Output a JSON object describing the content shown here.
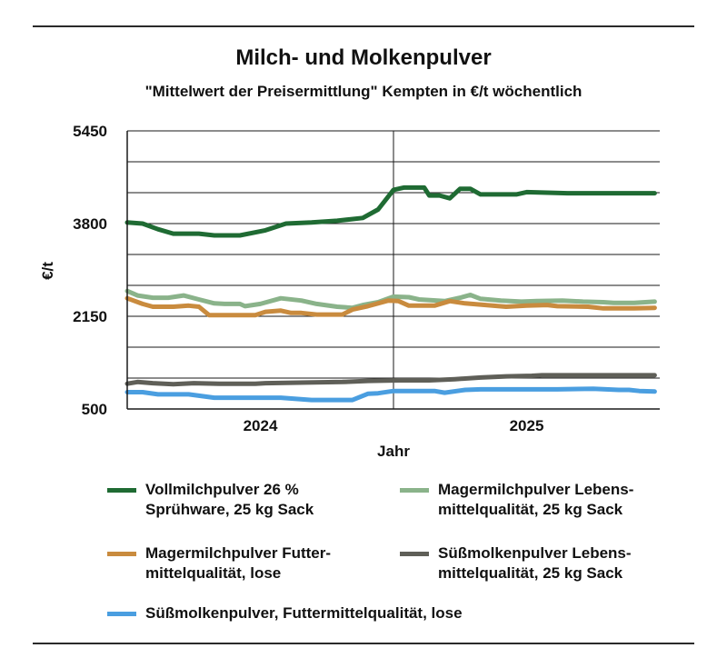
{
  "title": "Milch- und Molkenpulver",
  "subtitle": "\"Mittelwert der Preisermittlung\" Kempten in €/t wöchentlich",
  "chart_data": {
    "type": "line",
    "xlabel": "Jahr",
    "ylabel": "€/t",
    "x_ticks": [
      "2024",
      "2025"
    ],
    "xlim": [
      0,
      104
    ],
    "ylim": [
      500,
      5450
    ],
    "y_ticks": [
      500,
      2150,
      3800,
      5450
    ],
    "grid": true,
    "legend_position": "bottom",
    "series": [
      {
        "name": "Vollmilchpulver 26 %\nSprühware, 25 kg Sack",
        "color": "#1f6b33",
        "points": [
          [
            0,
            3820
          ],
          [
            3,
            3800
          ],
          [
            6,
            3700
          ],
          [
            9,
            3620
          ],
          [
            14,
            3620
          ],
          [
            17,
            3590
          ],
          [
            22,
            3590
          ],
          [
            27,
            3680
          ],
          [
            31,
            3800
          ],
          [
            36,
            3820
          ],
          [
            41,
            3850
          ],
          [
            46,
            3900
          ],
          [
            49,
            4050
          ],
          [
            52,
            4400
          ],
          [
            54,
            4440
          ],
          [
            58,
            4440
          ],
          [
            59,
            4300
          ],
          [
            61,
            4300
          ],
          [
            63,
            4250
          ],
          [
            65,
            4420
          ],
          [
            67,
            4420
          ],
          [
            69,
            4320
          ],
          [
            76,
            4320
          ],
          [
            78,
            4360
          ],
          [
            86,
            4340
          ],
          [
            94,
            4340
          ],
          [
            103,
            4340
          ]
        ]
      },
      {
        "name": "Magermilchpulver Lebens-\nmittelqualität, 25 kg Sack",
        "color": "#8ab38a",
        "points": [
          [
            0,
            2600
          ],
          [
            2,
            2520
          ],
          [
            5,
            2480
          ],
          [
            8,
            2480
          ],
          [
            11,
            2520
          ],
          [
            14,
            2450
          ],
          [
            17,
            2380
          ],
          [
            19,
            2370
          ],
          [
            22,
            2370
          ],
          [
            23,
            2330
          ],
          [
            26,
            2370
          ],
          [
            30,
            2470
          ],
          [
            34,
            2430
          ],
          [
            37,
            2370
          ],
          [
            41,
            2320
          ],
          [
            44,
            2300
          ],
          [
            46,
            2350
          ],
          [
            49,
            2400
          ],
          [
            52,
            2500
          ],
          [
            55,
            2490
          ],
          [
            57,
            2450
          ],
          [
            62,
            2420
          ],
          [
            65,
            2480
          ],
          [
            67,
            2530
          ],
          [
            69,
            2460
          ],
          [
            73,
            2430
          ],
          [
            77,
            2410
          ],
          [
            80,
            2420
          ],
          [
            85,
            2430
          ],
          [
            89,
            2410
          ],
          [
            93,
            2400
          ],
          [
            95,
            2390
          ],
          [
            99,
            2390
          ],
          [
            103,
            2410
          ]
        ]
      },
      {
        "name": "Magermilchpulver Futter-\nmittelqualität, lose",
        "color": "#c98b3e",
        "points": [
          [
            0,
            2470
          ],
          [
            3,
            2370
          ],
          [
            5,
            2320
          ],
          [
            9,
            2320
          ],
          [
            12,
            2340
          ],
          [
            14,
            2320
          ],
          [
            16,
            2170
          ],
          [
            25,
            2170
          ],
          [
            27,
            2230
          ],
          [
            30,
            2250
          ],
          [
            32,
            2210
          ],
          [
            34,
            2210
          ],
          [
            37,
            2180
          ],
          [
            42,
            2180
          ],
          [
            44,
            2270
          ],
          [
            47,
            2330
          ],
          [
            51,
            2430
          ],
          [
            53,
            2420
          ],
          [
            55,
            2340
          ],
          [
            60,
            2340
          ],
          [
            63,
            2420
          ],
          [
            66,
            2380
          ],
          [
            70,
            2350
          ],
          [
            74,
            2320
          ],
          [
            78,
            2340
          ],
          [
            82,
            2350
          ],
          [
            84,
            2330
          ],
          [
            90,
            2320
          ],
          [
            93,
            2290
          ],
          [
            99,
            2290
          ],
          [
            103,
            2300
          ]
        ]
      },
      {
        "name": "Süßmolkenpulver Lebens-\nmittelqualität, 25 kg Sack",
        "color": "#5f5f58",
        "points": [
          [
            0,
            950
          ],
          [
            2,
            980
          ],
          [
            5,
            960
          ],
          [
            9,
            940
          ],
          [
            13,
            960
          ],
          [
            18,
            950
          ],
          [
            25,
            950
          ],
          [
            27,
            960
          ],
          [
            35,
            970
          ],
          [
            42,
            980
          ],
          [
            47,
            1000
          ],
          [
            53,
            1010
          ],
          [
            59,
            1010
          ],
          [
            64,
            1030
          ],
          [
            69,
            1060
          ],
          [
            74,
            1080
          ],
          [
            79,
            1090
          ],
          [
            81,
            1100
          ],
          [
            90,
            1100
          ],
          [
            103,
            1100
          ]
        ]
      },
      {
        "name": "Süßmolkenpulver, Futtermittelqualität, lose",
        "color": "#4a9ee0",
        "points": [
          [
            0,
            800
          ],
          [
            3,
            800
          ],
          [
            6,
            760
          ],
          [
            12,
            760
          ],
          [
            17,
            700
          ],
          [
            22,
            700
          ],
          [
            30,
            700
          ],
          [
            36,
            660
          ],
          [
            44,
            660
          ],
          [
            47,
            770
          ],
          [
            49,
            780
          ],
          [
            52,
            820
          ],
          [
            60,
            820
          ],
          [
            62,
            790
          ],
          [
            66,
            840
          ],
          [
            69,
            850
          ],
          [
            84,
            850
          ],
          [
            91,
            860
          ],
          [
            96,
            840
          ],
          [
            98,
            840
          ],
          [
            100,
            820
          ],
          [
            103,
            810
          ]
        ]
      }
    ]
  }
}
